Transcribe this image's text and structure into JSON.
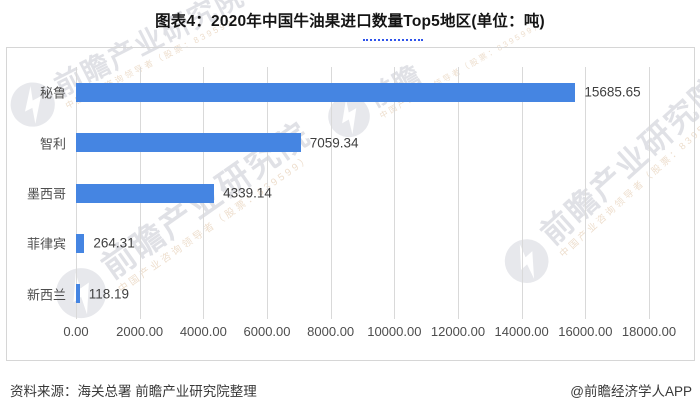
{
  "title": "图表4：2020年中国牛油果进口数量Top5地区(单位：吨)",
  "chart_data": {
    "type": "bar",
    "orientation": "horizontal",
    "title": "图表4：2020年中国牛油果进口数量Top5地区(单位：吨)",
    "categories": [
      "秘鲁",
      "智利",
      "墨西哥",
      "菲律宾",
      "新西兰"
    ],
    "values": [
      15685.65,
      7059.34,
      4339.14,
      264.31,
      118.19
    ],
    "value_labels": [
      "15685.65",
      "7059.34",
      "4339.14",
      "264.31",
      "118.19"
    ],
    "unit": "吨",
    "xlim": [
      0,
      18000
    ],
    "x_ticks": [
      "0.00",
      "2000.00",
      "4000.00",
      "6000.00",
      "8000.00",
      "10000.00",
      "12000.00",
      "14000.00",
      "16000.00",
      "18000.00"
    ],
    "grid": "vertical",
    "legend": "none",
    "bar_color": "#4585e2"
  },
  "watermark": {
    "brand": "前瞻产业研究院",
    "brand_short": "前瞻",
    "tagline": "中国产业咨询领导者（股票：839599）"
  },
  "footer": {
    "source": "资料来源：海关总署 前瞻产业研究院整理",
    "credit": "@前瞻经济学人APP"
  }
}
